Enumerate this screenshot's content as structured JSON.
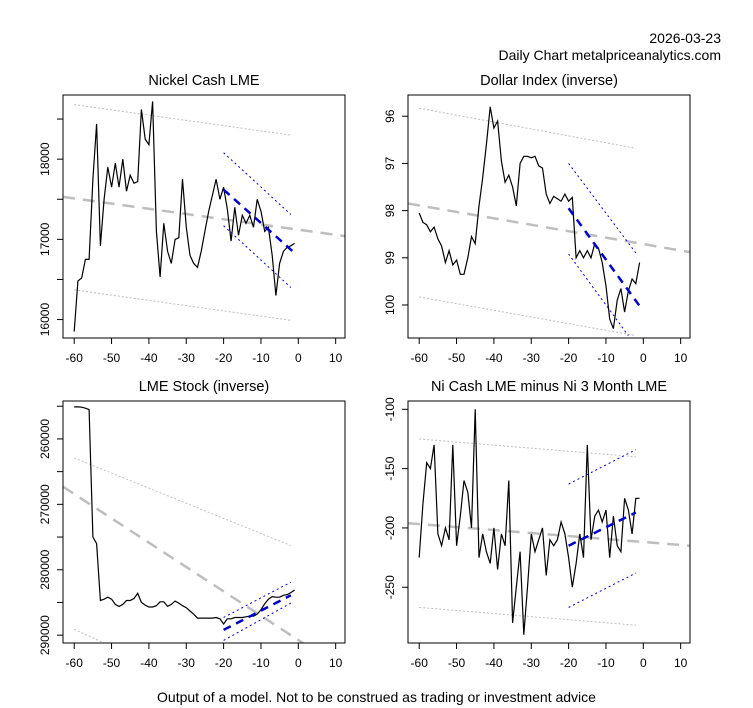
{
  "header": {
    "date": "2026-03-23",
    "site": "Daily Chart metalpriceanalytics.com"
  },
  "footer": "Output of a model. Not to be construed as trading or investment advice",
  "colors": {
    "series": "#000000",
    "trend_long": "#bebebe",
    "trend_short": "#0000cd",
    "frame": "#000000"
  },
  "chart_data": [
    {
      "type": "line",
      "title": "Nickel Cash LME",
      "xlabel": "",
      "ylabel": "",
      "xlim": [
        -63,
        12.5
      ],
      "ylim": [
        15770,
        18800
      ],
      "y_inverted": false,
      "x_ticks": [
        -60,
        -50,
        -40,
        -30,
        -20,
        -10,
        0,
        10
      ],
      "y_ticks": [
        16000,
        16500,
        17000,
        17500,
        18000,
        18500
      ],
      "y_tick_labels": [
        "16000",
        "",
        "17000",
        "",
        "18000",
        ""
      ],
      "x": [
        -60,
        -59,
        -58,
        -57,
        -56,
        -55,
        -54,
        -53,
        -52,
        -51,
        -50,
        -49,
        -48,
        -47,
        -46,
        -45,
        -44,
        -43,
        -42,
        -41,
        -40,
        -39,
        -38,
        -37,
        -36,
        -35,
        -34,
        -33,
        -32,
        -31,
        -30,
        -29,
        -28,
        -27,
        -26,
        -25,
        -24,
        -23,
        -22,
        -21,
        -20,
        -19,
        -18,
        -17,
        -16,
        -15,
        -14,
        -13,
        -12,
        -11,
        -10,
        -9,
        -8,
        -7,
        -6,
        -5,
        -4,
        -3,
        -2,
        -1
      ],
      "values": [
        15850,
        16480,
        16520,
        16750,
        16750,
        17750,
        18440,
        16920,
        17500,
        17900,
        17650,
        17950,
        17650,
        18000,
        17600,
        17800,
        17700,
        17720,
        18620,
        18250,
        18180,
        18720,
        17100,
        16530,
        17200,
        16850,
        16700,
        17000,
        17020,
        17750,
        17150,
        16800,
        16700,
        16650,
        16850,
        17100,
        17350,
        17550,
        17750,
        17500,
        17650,
        17380,
        16980,
        17400,
        17050,
        17300,
        17200,
        17300,
        17150,
        17500,
        17350,
        17100,
        17150,
        16800,
        16300,
        16700,
        16850,
        16900,
        16920,
        16950
      ],
      "trend_long": {
        "x0": -63,
        "y0": 17530,
        "x1": 12.5,
        "y1": 17040,
        "style": "dashed"
      },
      "band_long_upper": {
        "x0": -60,
        "y0": 18680,
        "x1": -2,
        "y1": 18300,
        "style": "dotted"
      },
      "band_long_lower": {
        "x0": -60,
        "y0": 16370,
        "x1": -2,
        "y1": 15990,
        "style": "dotted"
      },
      "trend_short": {
        "x0": -20,
        "y0": 17620,
        "x1": -1,
        "y1": 16830,
        "style": "dashed"
      },
      "band_short_upper": {
        "x0": -20,
        "y0": 18080,
        "x1": -2,
        "y1": 17310,
        "style": "dotted"
      },
      "band_short_lower": {
        "x0": -20,
        "y0": 17170,
        "x1": -2,
        "y1": 16400,
        "style": "dotted"
      }
    },
    {
      "type": "line",
      "title": "Dollar Index (inverse)",
      "xlabel": "",
      "ylabel": "",
      "xlim": [
        -63,
        12.5
      ],
      "ylim": [
        95.55,
        100.7
      ],
      "y_inverted": true,
      "x_ticks": [
        -60,
        -50,
        -40,
        -30,
        -20,
        -10,
        0,
        10
      ],
      "y_ticks": [
        96,
        97,
        98,
        99,
        100
      ],
      "y_tick_labels": [
        "96",
        "97",
        "98",
        "99",
        "100"
      ],
      "x": [
        -60,
        -59,
        -58,
        -57,
        -56,
        -55,
        -54,
        -53,
        -52,
        -51,
        -50,
        -49,
        -48,
        -47,
        -46,
        -45,
        -44,
        -43,
        -42,
        -41,
        -40,
        -39,
        -38,
        -37,
        -36,
        -35,
        -34,
        -33,
        -32,
        -31,
        -30,
        -29,
        -28,
        -27,
        -26,
        -25,
        -24,
        -23,
        -22,
        -21,
        -20,
        -19,
        -18,
        -17,
        -16,
        -15,
        -14,
        -13,
        -12,
        -11,
        -10,
        -9,
        -8,
        -7,
        -6,
        -5,
        -4,
        -3,
        -2,
        -1
      ],
      "values": [
        98.05,
        98.25,
        98.3,
        98.45,
        98.35,
        98.6,
        98.75,
        99.1,
        98.85,
        99.15,
        99.05,
        99.35,
        99.35,
        99.0,
        98.55,
        98.7,
        97.9,
        97.3,
        96.6,
        95.8,
        96.25,
        96.1,
        96.95,
        97.4,
        97.25,
        97.5,
        97.9,
        97.0,
        96.85,
        96.85,
        96.88,
        96.85,
        97.05,
        97.1,
        97.65,
        97.85,
        97.7,
        97.75,
        97.8,
        97.65,
        97.8,
        97.72,
        99.0,
        98.85,
        99.0,
        98.85,
        99.0,
        98.7,
        98.8,
        99.1,
        99.6,
        100.3,
        100.5,
        99.9,
        99.65,
        100.15,
        99.7,
        99.45,
        99.55,
        99.1
      ],
      "trend_long": {
        "x0": -63,
        "y0": 97.85,
        "x1": 12.5,
        "y1": 98.88,
        "style": "dashed"
      },
      "band_long_upper": {
        "x0": -60,
        "y0": 95.83,
        "x1": -2,
        "y1": 96.68,
        "style": "dotted"
      },
      "band_long_lower": {
        "x0": -60,
        "y0": 99.83,
        "x1": -2,
        "y1": 100.65,
        "style": "dotted"
      },
      "trend_short": {
        "x0": -20,
        "y0": 97.95,
        "x1": -1,
        "y1": 100.02,
        "style": "dashed"
      },
      "band_short_upper": {
        "x0": -20,
        "y0": 97.0,
        "x1": -1.5,
        "y1": 98.95,
        "style": "dotted"
      },
      "band_short_lower": {
        "x0": -20,
        "y0": 98.92,
        "x1": -4,
        "y1": 100.65,
        "style": "dotted"
      }
    },
    {
      "type": "line",
      "title": "LME Stock (inverse)",
      "xlabel": "",
      "ylabel": "",
      "xlim": [
        -63,
        12.5
      ],
      "ylim": [
        254200,
        291200
      ],
      "y_inverted": true,
      "x_ticks": [
        -60,
        -50,
        -40,
        -30,
        -20,
        -10,
        0,
        10
      ],
      "y_ticks": [
        255000,
        260000,
        265000,
        270000,
        275000,
        280000,
        285000,
        290000
      ],
      "y_tick_labels": [
        "",
        "260000",
        "",
        "270000",
        "",
        "280000",
        "",
        "290000"
      ],
      "x": [
        -60,
        -59,
        -58,
        -57,
        -56,
        -55,
        -54,
        -53,
        -52,
        -51,
        -50,
        -49,
        -48,
        -47,
        -46,
        -45,
        -44,
        -43,
        -42,
        -41,
        -40,
        -39,
        -38,
        -37,
        -36,
        -35,
        -34,
        -33,
        -32,
        -31,
        -30,
        -29,
        -28,
        -27,
        -26,
        -25,
        -24,
        -23,
        -22,
        -21,
        -20,
        -19,
        -18,
        -17,
        -16,
        -15,
        -14,
        -13,
        -12,
        -11,
        -10,
        -9,
        -8,
        -7,
        -6,
        -5,
        -4,
        -3,
        -2,
        -1
      ],
      "values": [
        255100,
        255100,
        255150,
        255300,
        255500,
        275000,
        276000,
        284700,
        284500,
        284200,
        284500,
        285300,
        285600,
        285300,
        284700,
        284700,
        284400,
        283600,
        285000,
        285400,
        285700,
        285700,
        285500,
        284900,
        284900,
        285600,
        285300,
        284800,
        285100,
        285500,
        285800,
        286300,
        286800,
        287400,
        287400,
        287400,
        287400,
        287400,
        287300,
        287500,
        288300,
        287500,
        287500,
        287300,
        287300,
        287300,
        287200,
        287100,
        287100,
        286800,
        286100,
        285200,
        284500,
        284100,
        284200,
        284200,
        283900,
        283800,
        283500,
        283100
      ],
      "trend_long": {
        "x0": -63,
        "y0": 267300,
        "x1": 12.5,
        "y1": 295400,
        "style": "dashed"
      },
      "band_long_upper": {
        "x0": -60,
        "y0": 262900,
        "x1": -2,
        "y1": 276300,
        "style": "dotted"
      },
      "band_long_lower": {
        "x0": -60,
        "y0": 289100,
        "x1": -52,
        "y1": 291200,
        "style": "dotted"
      },
      "trend_short": {
        "x0": -20,
        "y0": 289200,
        "x1": -2,
        "y1": 283900,
        "style": "dashed"
      },
      "band_short_upper": {
        "x0": -20,
        "y0": 287300,
        "x1": -2,
        "y1": 281900,
        "style": "dotted"
      },
      "band_short_lower": {
        "x0": -20,
        "y0": 290800,
        "x1": -2,
        "y1": 285100,
        "style": "dotted"
      }
    },
    {
      "type": "line",
      "title": "Ni Cash LME minus Ni 3 Month LME",
      "xlabel": "",
      "ylabel": "",
      "xlim": [
        -63,
        12.5
      ],
      "ylim": [
        -297,
        -93
      ],
      "y_inverted": false,
      "x_ticks": [
        -60,
        -50,
        -40,
        -30,
        -20,
        -10,
        0,
        10
      ],
      "y_ticks": [
        -100,
        -150,
        -200,
        -250
      ],
      "y_tick_labels": [
        "-100",
        "-150",
        "-200",
        "-250"
      ],
      "x": [
        -60,
        -59,
        -58,
        -57,
        -56,
        -55,
        -54,
        -53,
        -52,
        -51,
        -50,
        -49,
        -48,
        -47,
        -46,
        -45,
        -44,
        -43,
        -42,
        -41,
        -40,
        -39,
        -38,
        -37,
        -36,
        -35,
        -34,
        -33,
        -32,
        -31,
        -30,
        -29,
        -28,
        -27,
        -26,
        -25,
        -24,
        -23,
        -22,
        -21,
        -20,
        -19,
        -18,
        -17,
        -16,
        -15,
        -14,
        -13,
        -12,
        -11,
        -10,
        -9,
        -8,
        -7,
        -6,
        -5,
        -4,
        -3,
        -2,
        -1
      ],
      "values": [
        -225,
        -180,
        -145,
        -150,
        -130,
        -205,
        -215,
        -200,
        -210,
        -130,
        -215,
        -190,
        -160,
        -170,
        -200,
        -100,
        -225,
        -205,
        -220,
        -230,
        -200,
        -235,
        -205,
        -215,
        -160,
        -280,
        -250,
        -220,
        -290,
        -250,
        -205,
        -220,
        -210,
        -200,
        -240,
        -210,
        -215,
        -210,
        -195,
        -205,
        -225,
        -250,
        -230,
        -205,
        -225,
        -130,
        -210,
        -190,
        -185,
        -195,
        -185,
        -225,
        -190,
        -215,
        -220,
        -175,
        -185,
        -205,
        -175,
        -175
      ],
      "trend_long": {
        "x0": -63,
        "y0": -196,
        "x1": 12.5,
        "y1": -215,
        "style": "dashed"
      },
      "band_long_upper": {
        "x0": -60,
        "y0": -125,
        "x1": -2,
        "y1": -140,
        "style": "dotted"
      },
      "band_long_lower": {
        "x0": -60,
        "y0": -267,
        "x1": -2,
        "y1": -282,
        "style": "dotted"
      },
      "trend_short": {
        "x0": -20,
        "y0": -215,
        "x1": -2,
        "y1": -187,
        "style": "dashed"
      },
      "band_short_upper": {
        "x0": -20,
        "y0": -163,
        "x1": -2,
        "y1": -134,
        "style": "dotted"
      },
      "band_short_lower": {
        "x0": -20,
        "y0": -267,
        "x1": -2,
        "y1": -238,
        "style": "dotted"
      }
    }
  ]
}
